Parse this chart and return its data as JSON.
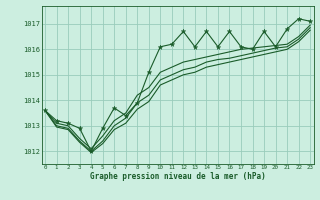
{
  "title": "Graphe pression niveau de la mer (hPa)",
  "bg_color": "#cceee0",
  "grid_color": "#99ccbb",
  "line_color": "#1a5c2a",
  "xlim": [
    -0.3,
    23.3
  ],
  "ylim": [
    1011.5,
    1017.7
  ],
  "yticks": [
    1012,
    1013,
    1014,
    1015,
    1016,
    1017
  ],
  "xticks": [
    0,
    1,
    2,
    3,
    4,
    5,
    6,
    7,
    8,
    9,
    10,
    11,
    12,
    13,
    14,
    15,
    16,
    17,
    18,
    19,
    20,
    21,
    22,
    23
  ],
  "series_zigzag": [
    1013.6,
    1013.2,
    1013.1,
    1012.9,
    1012.0,
    1012.9,
    1013.7,
    1013.4,
    1013.9,
    1015.1,
    1016.1,
    1016.2,
    1016.7,
    1016.1,
    1016.7,
    1016.1,
    1016.7,
    1016.1,
    1016.0,
    1016.7,
    1016.1,
    1016.8,
    1017.2,
    1017.1
  ],
  "series_smooth1": [
    1013.6,
    1013.1,
    1013.0,
    1012.5,
    1012.1,
    1012.6,
    1013.2,
    1013.5,
    1014.2,
    1014.5,
    1015.1,
    1015.3,
    1015.5,
    1015.6,
    1015.7,
    1015.8,
    1015.9,
    1016.0,
    1016.05,
    1016.1,
    1016.15,
    1016.2,
    1016.5,
    1016.95
  ],
  "series_smooth2": [
    1013.6,
    1013.0,
    1012.9,
    1012.4,
    1012.0,
    1012.4,
    1013.0,
    1013.3,
    1013.9,
    1014.2,
    1014.8,
    1015.0,
    1015.2,
    1015.3,
    1015.5,
    1015.6,
    1015.65,
    1015.75,
    1015.85,
    1015.95,
    1016.05,
    1016.1,
    1016.4,
    1016.85
  ],
  "series_smooth3": [
    1013.6,
    1012.95,
    1012.85,
    1012.35,
    1011.95,
    1012.3,
    1012.85,
    1013.1,
    1013.65,
    1013.95,
    1014.6,
    1014.8,
    1015.0,
    1015.1,
    1015.3,
    1015.4,
    1015.5,
    1015.6,
    1015.7,
    1015.8,
    1015.9,
    1016.0,
    1016.3,
    1016.75
  ]
}
